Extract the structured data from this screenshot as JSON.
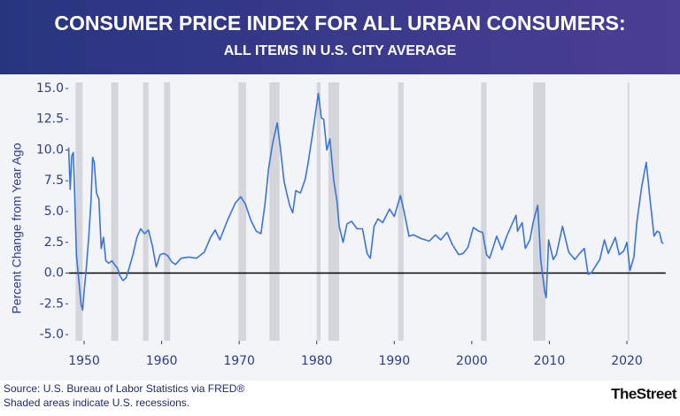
{
  "chart_data": {
    "type": "line",
    "title": "CONSUMER PRICE INDEX FOR ALL URBAN CONSUMERS:",
    "subtitle": "ALL ITEMS IN U.S. CITY AVERAGE",
    "y_label": "Percent Change from Year Ago",
    "source": "Source: U.S. Bureau of Labor Statistics via FRED®",
    "note": "Shaded areas indicate U.S. recessions.",
    "brand": "TheStreet",
    "color": "#3b74d9",
    "xlim": [
      1948,
      2025
    ],
    "xticks": [
      1950,
      1960,
      1970,
      1980,
      1990,
      2000,
      2010,
      2020
    ],
    "ylim": [
      -5.5,
      15.5
    ],
    "yticks": [
      {
        "value": -5,
        "label": "-5.0"
      },
      {
        "value": -2.5,
        "label": "-2.5"
      },
      {
        "value": 0,
        "label": "0.0"
      },
      {
        "value": 2.5,
        "label": "2.5"
      },
      {
        "value": 5,
        "label": "5.0"
      },
      {
        "value": 7.5,
        "label": "7.5"
      },
      {
        "value": 10,
        "label": "10.0"
      },
      {
        "value": 12.5,
        "label": "12.5"
      },
      {
        "value": 15,
        "label": "15.0"
      }
    ],
    "zero_line": 0,
    "recessions": [
      [
        1948.9,
        1949.8
      ],
      [
        1953.5,
        1954.4
      ],
      [
        1957.6,
        1958.3
      ],
      [
        1960.3,
        1961.1
      ],
      [
        1969.9,
        1970.9
      ],
      [
        1973.9,
        1975.2
      ],
      [
        1980.0,
        1980.5
      ],
      [
        1981.5,
        1982.9
      ],
      [
        1990.5,
        1991.2
      ],
      [
        2001.2,
        2001.9
      ],
      [
        2007.9,
        2009.5
      ],
      [
        2020.1,
        2020.3
      ]
    ],
    "x": [
      1948.0,
      1948.2,
      1948.4,
      1948.6,
      1948.8,
      1949.0,
      1949.3,
      1949.6,
      1949.8,
      1950.0,
      1950.3,
      1950.6,
      1950.9,
      1951.1,
      1951.3,
      1951.6,
      1951.9,
      1952.2,
      1952.5,
      1952.8,
      1953.2,
      1953.6,
      1953.9,
      1954.3,
      1954.6,
      1955.0,
      1955.4,
      1955.8,
      1956.3,
      1956.8,
      1957.3,
      1957.8,
      1958.3,
      1958.8,
      1959.3,
      1959.8,
      1960.3,
      1960.8,
      1961.3,
      1961.8,
      1962.5,
      1963.5,
      1964.5,
      1965.5,
      1966.3,
      1966.9,
      1967.5,
      1968.5,
      1969.5,
      1970.2,
      1970.8,
      1971.5,
      1972.2,
      1972.8,
      1973.3,
      1973.8,
      1974.3,
      1974.9,
      1975.3,
      1975.8,
      1976.5,
      1976.9,
      1977.3,
      1977.9,
      1978.5,
      1978.9,
      1979.5,
      1980.2,
      1980.6,
      1980.9,
      1981.3,
      1981.7,
      1982.2,
      1982.6,
      1982.9,
      1983.4,
      1983.9,
      1984.5,
      1985.2,
      1985.9,
      1986.5,
      1986.9,
      1987.4,
      1987.9,
      1988.5,
      1989.4,
      1990.0,
      1990.8,
      1991.3,
      1991.9,
      1992.5,
      1993.5,
      1994.5,
      1995.3,
      1996.0,
      1996.8,
      1997.5,
      1998.3,
      1998.9,
      1999.5,
      2000.2,
      2000.9,
      2001.4,
      2001.9,
      2002.3,
      2002.9,
      2003.2,
      2003.9,
      2004.5,
      2005.7,
      2005.9,
      2006.5,
      2006.9,
      2007.5,
      2007.9,
      2008.5,
      2008.9,
      2009.4,
      2009.6,
      2009.9,
      2010.5,
      2010.9,
      2011.7,
      2012.5,
      2013.3,
      2013.9,
      2014.5,
      2015.0,
      2015.4,
      2015.9,
      2016.5,
      2017.1,
      2017.6,
      2018.5,
      2019.0,
      2019.6,
      2020.0,
      2020.4,
      2020.9,
      2021.3,
      2021.9,
      2022.5,
      2022.9,
      2023.5,
      2023.9,
      2024.2,
      2024.5,
      2024.7
    ],
    "values": [
      10.2,
      6.8,
      9.5,
      9.8,
      6.0,
      1.5,
      -0.5,
      -2.5,
      -3.0,
      -1.5,
      0.5,
      3.0,
      6.0,
      9.4,
      9.0,
      6.5,
      6.0,
      2.0,
      2.9,
      1.0,
      0.8,
      1.0,
      0.7,
      0.4,
      -0.2,
      -0.6,
      -0.4,
      0.4,
      1.5,
      2.9,
      3.6,
      3.2,
      3.5,
      2.2,
      0.5,
      1.5,
      1.6,
      1.4,
      0.9,
      0.7,
      1.2,
      1.3,
      1.2,
      1.7,
      2.9,
      3.5,
      2.7,
      4.3,
      5.7,
      6.2,
      5.6,
      4.3,
      3.4,
      3.2,
      5.5,
      8.5,
      10.5,
      12.2,
      10.2,
      7.4,
      5.5,
      4.9,
      6.7,
      6.5,
      7.6,
      9.0,
      11.5,
      14.6,
      12.6,
      12.5,
      10.0,
      10.9,
      7.5,
      5.9,
      3.8,
      2.5,
      4.0,
      4.2,
      3.6,
      3.6,
      1.6,
      1.2,
      3.8,
      4.4,
      4.1,
      5.2,
      4.6,
      6.3,
      4.9,
      3.0,
      3.1,
      2.8,
      2.6,
      3.1,
      2.7,
      3.3,
      2.3,
      1.5,
      1.6,
      2.1,
      3.7,
      3.4,
      3.3,
      1.5,
      1.2,
      2.4,
      3.0,
      1.9,
      3.0,
      4.7,
      3.4,
      4.1,
      2.0,
      2.7,
      4.1,
      5.5,
      1.0,
      -1.5,
      -2.0,
      2.7,
      1.1,
      1.5,
      3.8,
      1.7,
      1.1,
      1.6,
      2.0,
      -0.1,
      0.0,
      0.5,
      1.1,
      2.7,
      1.6,
      2.9,
      1.5,
      1.8,
      2.5,
      0.2,
      1.3,
      4.2,
      7.0,
      9.0,
      6.5,
      3.0,
      3.4,
      3.3,
      2.5,
      2.4
    ]
  }
}
